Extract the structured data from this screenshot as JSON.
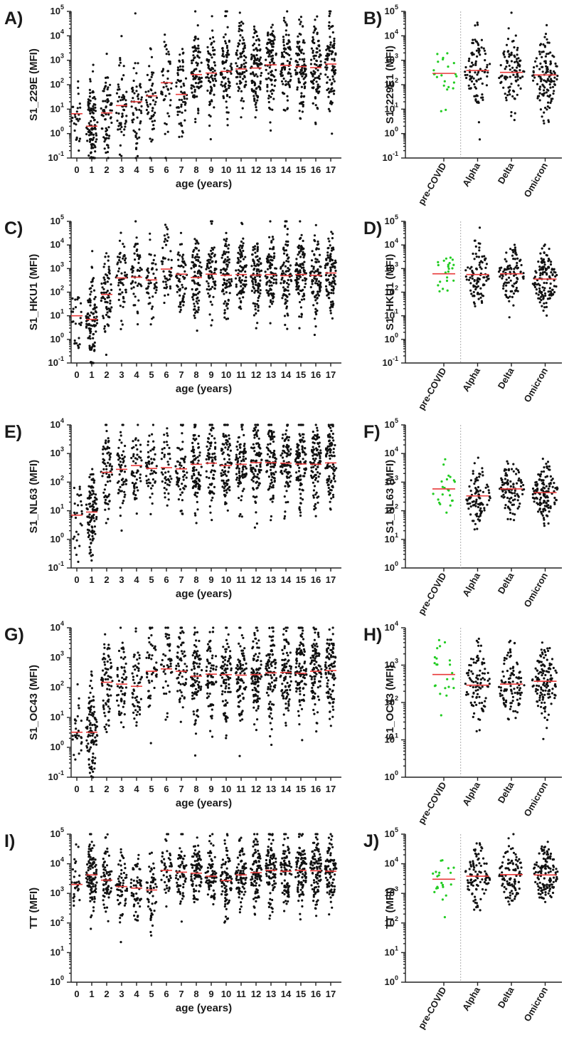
{
  "figure": {
    "colors": {
      "point": "#111111",
      "pre_covid_point": "#22cc22",
      "median": "#e83a3a",
      "axis": "#222222"
    }
  },
  "chart_data": [
    {
      "panel": "A)",
      "type": "scatter",
      "subtype": "dot-strip",
      "scale": "log10",
      "ylabel": "S1_229E (MFI)",
      "xlabel": "age (years)",
      "ylim_exp": [
        -1,
        5
      ],
      "yticks": [
        {
          "b": "10",
          "e": "-1"
        },
        {
          "b": "10",
          "e": "0"
        },
        {
          "b": "10",
          "e": "1"
        },
        {
          "b": "10",
          "e": "2"
        },
        {
          "b": "10",
          "e": "3"
        },
        {
          "b": "10",
          "e": "4"
        },
        {
          "b": "10",
          "e": "5"
        }
      ],
      "categories": [
        "0",
        "1",
        "2",
        "3",
        "4",
        "5",
        "6",
        "7",
        "8",
        "9",
        "10",
        "11",
        "12",
        "13",
        "14",
        "15",
        "16",
        "17"
      ],
      "medians": [
        6.5,
        2,
        7,
        14,
        20,
        35,
        120,
        40,
        260,
        300,
        350,
        440,
        480,
        650,
        620,
        550,
        500,
        700
      ],
      "counts": [
        28,
        105,
        70,
        58,
        55,
        52,
        45,
        62,
        85,
        72,
        85,
        85,
        95,
        95,
        85,
        100,
        95,
        95
      ],
      "spread": 0.95
    },
    {
      "panel": "B)",
      "type": "scatter",
      "subtype": "dot-strip",
      "scale": "log10",
      "ylabel": "S1_229E1 (MFI)",
      "xlabel": "",
      "ylim_exp": [
        -1,
        5
      ],
      "yticks": [
        {
          "b": "10",
          "e": "-1"
        },
        {
          "b": "10",
          "e": "0"
        },
        {
          "b": "10",
          "e": "1"
        },
        {
          "b": "10",
          "e": "2"
        },
        {
          "b": "10",
          "e": "3"
        },
        {
          "b": "10",
          "e": "4"
        },
        {
          "b": "10",
          "e": "5"
        }
      ],
      "categories": [
        "pre-COVID",
        "Alpha",
        "Delta",
        "Omicron"
      ],
      "medians": [
        290,
        380,
        320,
        250
      ],
      "counts": [
        22,
        95,
        100,
        130
      ],
      "spread": 0.75
    },
    {
      "panel": "C)",
      "type": "scatter",
      "subtype": "dot-strip",
      "scale": "log10",
      "ylabel": "S1_HKU1 (MFI)",
      "xlabel": "age (years)",
      "ylim_exp": [
        -1,
        5
      ],
      "yticks": [
        {
          "b": "10",
          "e": "-1"
        },
        {
          "b": "10",
          "e": "0"
        },
        {
          "b": "10",
          "e": "1"
        },
        {
          "b": "10",
          "e": "2"
        },
        {
          "b": "10",
          "e": "3"
        },
        {
          "b": "10",
          "e": "4"
        },
        {
          "b": "10",
          "e": "5"
        }
      ],
      "categories": [
        "0",
        "1",
        "2",
        "3",
        "4",
        "5",
        "6",
        "7",
        "8",
        "9",
        "10",
        "11",
        "12",
        "13",
        "14",
        "15",
        "16",
        "17"
      ],
      "medians": [
        10,
        7,
        80,
        400,
        430,
        330,
        950,
        580,
        420,
        580,
        520,
        560,
        530,
        560,
        500,
        560,
        520,
        650
      ],
      "counts": [
        28,
        105,
        70,
        58,
        55,
        52,
        45,
        62,
        85,
        72,
        85,
        85,
        95,
        95,
        85,
        100,
        95,
        95
      ],
      "spread": 0.85
    },
    {
      "panel": "D)",
      "type": "scatter",
      "subtype": "dot-strip",
      "scale": "log10",
      "ylabel": "S1_HKU1 (MFI)",
      "xlabel": "",
      "ylim_exp": [
        -1,
        5
      ],
      "yticks": [
        {
          "b": "10",
          "e": "-1"
        },
        {
          "b": "10",
          "e": "0"
        },
        {
          "b": "10",
          "e": "1"
        },
        {
          "b": "10",
          "e": "2"
        },
        {
          "b": "10",
          "e": "3"
        },
        {
          "b": "10",
          "e": "4"
        },
        {
          "b": "10",
          "e": "5"
        }
      ],
      "categories": [
        "pre-COVID",
        "Alpha",
        "Delta",
        "Omicron"
      ],
      "medians": [
        600,
        560,
        600,
        360
      ],
      "counts": [
        22,
        95,
        100,
        130
      ],
      "spread": 0.6
    },
    {
      "panel": "E)",
      "type": "scatter",
      "subtype": "dot-strip",
      "scale": "log10",
      "ylabel": "S1_NL63 (MFI)",
      "xlabel": "age (years)",
      "ylim_exp": [
        -1,
        4
      ],
      "yticks": [
        {
          "b": "10",
          "e": "-1"
        },
        {
          "b": "10",
          "e": "0"
        },
        {
          "b": "10",
          "e": "1"
        },
        {
          "b": "10",
          "e": "2"
        },
        {
          "b": "10",
          "e": "3"
        },
        {
          "b": "10",
          "e": "4"
        }
      ],
      "categories": [
        "0",
        "1",
        "2",
        "3",
        "4",
        "5",
        "6",
        "7",
        "8",
        "9",
        "10",
        "11",
        "12",
        "13",
        "14",
        "15",
        "16",
        "17"
      ],
      "medians": [
        7,
        9,
        220,
        280,
        380,
        300,
        320,
        290,
        420,
        460,
        380,
        420,
        480,
        480,
        460,
        430,
        420,
        470
      ],
      "counts": [
        28,
        105,
        70,
        58,
        55,
        52,
        45,
        62,
        85,
        72,
        85,
        85,
        95,
        95,
        85,
        100,
        95,
        95
      ],
      "spread": 0.75
    },
    {
      "panel": "F)",
      "type": "scatter",
      "subtype": "dot-strip",
      "scale": "log10",
      "ylabel": "S1_NL63 (MFI)",
      "xlabel": "",
      "ylim_exp": [
        0,
        5
      ],
      "yticks": [
        {
          "b": "10",
          "e": "0"
        },
        {
          "b": "10",
          "e": "1"
        },
        {
          "b": "10",
          "e": "2"
        },
        {
          "b": "10",
          "e": "3"
        },
        {
          "b": "10",
          "e": "4"
        },
        {
          "b": "10",
          "e": "5"
        }
      ],
      "categories": [
        "pre-COVID",
        "Alpha",
        "Delta",
        "Omicron"
      ],
      "medians": [
        580,
        330,
        580,
        430
      ],
      "counts": [
        22,
        95,
        100,
        130
      ],
      "spread": 0.5
    },
    {
      "panel": "G)",
      "type": "scatter",
      "subtype": "dot-strip",
      "scale": "log10",
      "ylabel": "S1_OC43 (MFI)",
      "xlabel": "age (years)",
      "ylim_exp": [
        -1,
        4
      ],
      "yticks": [
        {
          "b": "10",
          "e": "-1"
        },
        {
          "b": "10",
          "e": "0"
        },
        {
          "b": "10",
          "e": "1"
        },
        {
          "b": "10",
          "e": "2"
        },
        {
          "b": "10",
          "e": "3"
        },
        {
          "b": "10",
          "e": "4"
        }
      ],
      "categories": [
        "0",
        "1",
        "2",
        "3",
        "4",
        "5",
        "6",
        "7",
        "8",
        "9",
        "10",
        "11",
        "12",
        "13",
        "14",
        "15",
        "16",
        "17"
      ],
      "medians": [
        3.2,
        3.2,
        150,
        130,
        110,
        350,
        420,
        350,
        240,
        280,
        270,
        260,
        270,
        310,
        320,
        300,
        350,
        370
      ],
      "counts": [
        28,
        105,
        70,
        58,
        55,
        52,
        45,
        62,
        85,
        72,
        85,
        85,
        95,
        95,
        85,
        100,
        95,
        95
      ],
      "spread": 0.8
    },
    {
      "panel": "H)",
      "type": "scatter",
      "subtype": "dot-strip",
      "scale": "log10",
      "ylabel": "S1_OC43 (MFI)",
      "xlabel": "",
      "ylim_exp": [
        0,
        4
      ],
      "yticks": [
        {
          "b": "10",
          "e": "0"
        },
        {
          "b": "10",
          "e": "1"
        },
        {
          "b": "10",
          "e": "2"
        },
        {
          "b": "10",
          "e": "3"
        },
        {
          "b": "10",
          "e": "4"
        }
      ],
      "categories": [
        "pre-COVID",
        "Alpha",
        "Delta",
        "Omicron"
      ],
      "medians": [
        560,
        290,
        310,
        370
      ],
      "counts": [
        22,
        95,
        100,
        130
      ],
      "spread": 0.5
    },
    {
      "panel": "I)",
      "type": "scatter",
      "subtype": "dot-strip",
      "scale": "log10",
      "ylabel": "TT (MFI)",
      "xlabel": "age (years)",
      "ylim_exp": [
        0,
        5
      ],
      "yticks": [
        {
          "b": "10",
          "e": "0"
        },
        {
          "b": "10",
          "e": "1"
        },
        {
          "b": "10",
          "e": "2"
        },
        {
          "b": "10",
          "e": "3"
        },
        {
          "b": "10",
          "e": "4"
        },
        {
          "b": "10",
          "e": "5"
        }
      ],
      "categories": [
        "0",
        "1",
        "2",
        "3",
        "4",
        "5",
        "6",
        "7",
        "8",
        "9",
        "10",
        "11",
        "12",
        "13",
        "14",
        "15",
        "16",
        "17"
      ],
      "medians": [
        2000,
        4200,
        2800,
        1700,
        1500,
        1300,
        6000,
        5200,
        4800,
        3800,
        2700,
        4200,
        5000,
        6000,
        5600,
        6000,
        5800,
        5600
      ],
      "counts": [
        28,
        105,
        70,
        58,
        55,
        52,
        45,
        62,
        85,
        72,
        85,
        85,
        95,
        95,
        85,
        100,
        95,
        95
      ],
      "spread": 0.6
    },
    {
      "panel": "J)",
      "type": "scatter",
      "subtype": "dot-strip",
      "scale": "log10",
      "ylabel": "TT (MFI)",
      "xlabel": "",
      "ylim_exp": [
        0,
        5
      ],
      "yticks": [
        {
          "b": "10",
          "e": "0"
        },
        {
          "b": "10",
          "e": "1"
        },
        {
          "b": "10",
          "e": "2"
        },
        {
          "b": "10",
          "e": "3"
        },
        {
          "b": "10",
          "e": "4"
        },
        {
          "b": "10",
          "e": "5"
        }
      ],
      "categories": [
        "pre-COVID",
        "Alpha",
        "Delta",
        "Omicron"
      ],
      "medians": [
        3000,
        3800,
        4300,
        4200
      ],
      "counts": [
        22,
        95,
        100,
        130
      ],
      "spread": 0.5
    }
  ]
}
